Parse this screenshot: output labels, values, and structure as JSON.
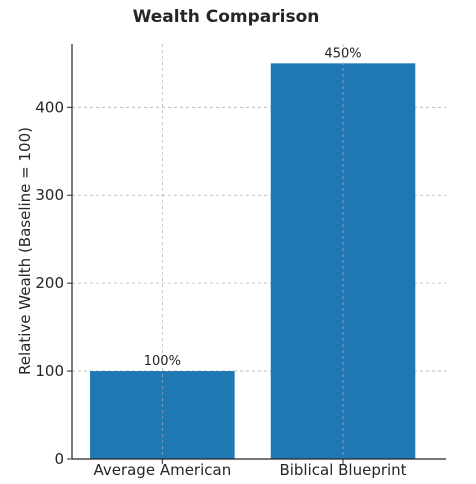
{
  "chart_data": {
    "type": "bar",
    "title": "Wealth Comparison",
    "xlabel": "",
    "ylabel": "Relative Wealth (Baseline = 100)",
    "categories": [
      "Average American",
      "Biblical Blueprint"
    ],
    "values": [
      100,
      450
    ],
    "data_labels": [
      "100%",
      "450%"
    ],
    "ylim": [
      0,
      472
    ],
    "yticks": [
      0,
      100,
      200,
      300,
      400
    ],
    "grid": true,
    "bar_color": "#1f77b4",
    "grid_color": "#b0b0b0",
    "axis_color": "#262626"
  }
}
